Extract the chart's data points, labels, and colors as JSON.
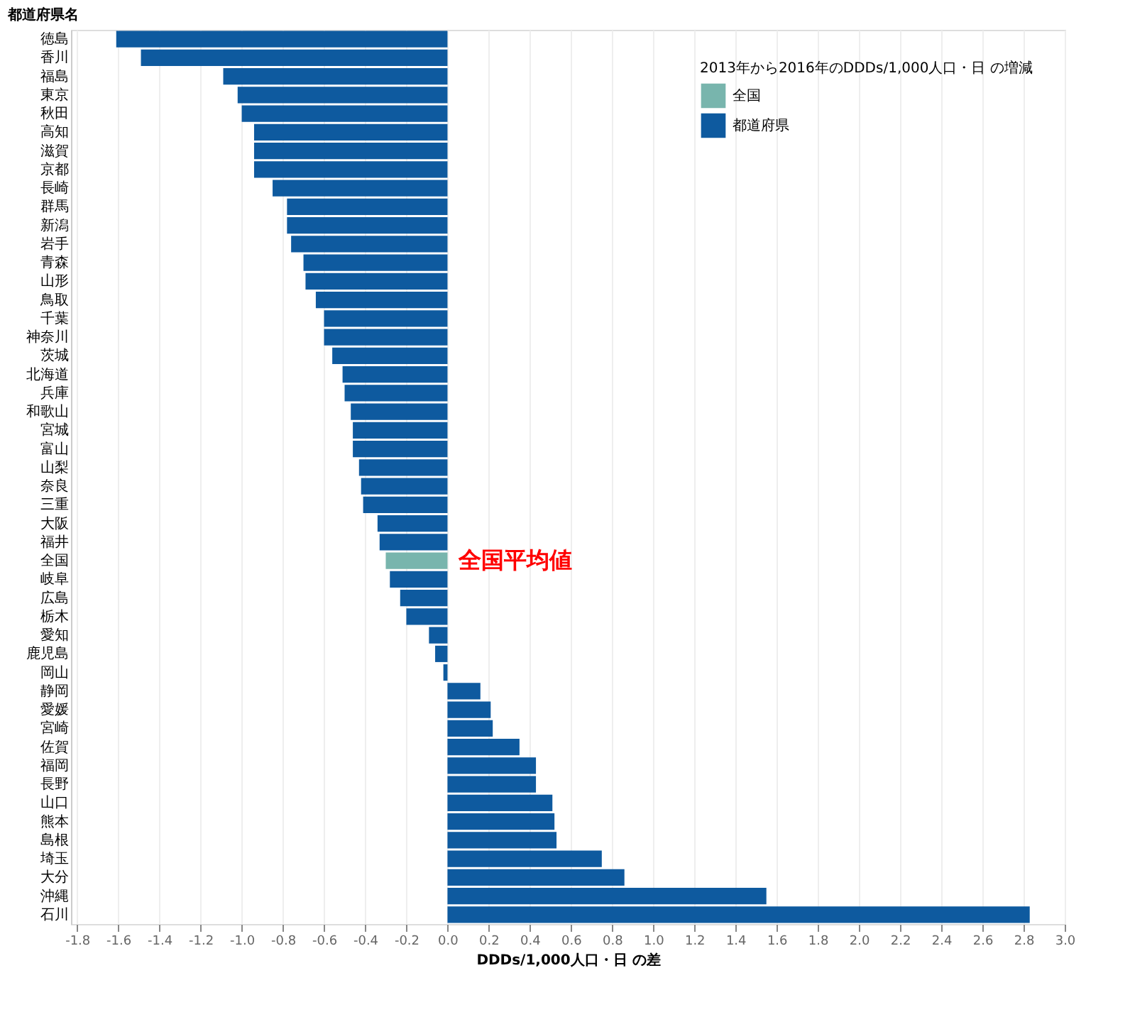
{
  "chart_data": {
    "type": "bar",
    "orientation": "horizontal",
    "categories": [
      "徳島",
      "香川",
      "福島",
      "東京",
      "秋田",
      "高知",
      "滋賀",
      "京都",
      "長崎",
      "群馬",
      "新潟",
      "岩手",
      "青森",
      "山形",
      "鳥取",
      "千葉",
      "神奈川",
      "茨城",
      "北海道",
      "兵庫",
      "和歌山",
      "宮城",
      "富山",
      "山梨",
      "奈良",
      "三重",
      "大阪",
      "福井",
      "全国",
      "岐阜",
      "広島",
      "栃木",
      "愛知",
      "鹿児島",
      "岡山",
      "静岡",
      "愛媛",
      "宮崎",
      "佐賀",
      "福岡",
      "長野",
      "山口",
      "熊本",
      "島根",
      "埼玉",
      "大分",
      "沖縄",
      "石川"
    ],
    "series": [
      {
        "name": "全国",
        "color": "#78b5ad",
        "values": [
          null,
          null,
          null,
          null,
          null,
          null,
          null,
          null,
          null,
          null,
          null,
          null,
          null,
          null,
          null,
          null,
          null,
          null,
          null,
          null,
          null,
          null,
          null,
          null,
          null,
          null,
          null,
          null,
          -0.3,
          null,
          null,
          null,
          null,
          null,
          null,
          null,
          null,
          null,
          null,
          null,
          null,
          null,
          null,
          null,
          null,
          null,
          null,
          null
        ]
      },
      {
        "name": "都道府県",
        "color": "#0e5a9f",
        "values": [
          -1.61,
          -1.49,
          -1.09,
          -1.02,
          -1.0,
          -0.94,
          -0.94,
          -0.94,
          -0.85,
          -0.78,
          -0.78,
          -0.76,
          -0.7,
          -0.69,
          -0.64,
          -0.6,
          -0.6,
          -0.56,
          -0.51,
          -0.5,
          -0.47,
          -0.46,
          -0.46,
          -0.43,
          -0.42,
          -0.41,
          -0.34,
          -0.33,
          null,
          -0.28,
          -0.23,
          -0.2,
          -0.09,
          -0.06,
          -0.02,
          0.16,
          0.21,
          0.22,
          0.35,
          0.43,
          0.43,
          0.51,
          0.52,
          0.53,
          0.75,
          0.86,
          1.55,
          2.83
        ]
      }
    ],
    "xlabel": "DDDs/1,000人口・日 の差",
    "ylabel": "都道府県名",
    "legend_title": "2013年から2016年のDDDs/1,000人口・日 の増減",
    "legend": "top right",
    "grid": "x",
    "xlim": [
      -1.83,
      3.0
    ],
    "xticks": [
      {
        "value": -1.8,
        "label": "-1.8"
      },
      {
        "value": -1.6,
        "label": "-1.6"
      },
      {
        "value": -1.4,
        "label": "-1.4"
      },
      {
        "value": -1.2,
        "label": "-1.2"
      },
      {
        "value": -1.0,
        "label": "-1.0"
      },
      {
        "value": -0.8,
        "label": "-0.8"
      },
      {
        "value": -0.6,
        "label": "-0.6"
      },
      {
        "value": -0.4,
        "label": "-0.4"
      },
      {
        "value": -0.2,
        "label": "-0.2"
      },
      {
        "value": 0,
        "label": "0.0"
      },
      {
        "value": 0.2,
        "label": "0.2"
      },
      {
        "value": 0.4,
        "label": "0.4"
      },
      {
        "value": 0.6,
        "label": "0.6"
      },
      {
        "value": 0.8,
        "label": "0.8"
      },
      {
        "value": 1.0,
        "label": "1.0"
      },
      {
        "value": 1.2,
        "label": "1.2"
      },
      {
        "value": 1.4,
        "label": "1.4"
      },
      {
        "value": 1.6,
        "label": "1.6"
      },
      {
        "value": 1.8,
        "label": "1.8"
      },
      {
        "value": 2.0,
        "label": "2.0"
      },
      {
        "value": 2.2,
        "label": "2.2"
      },
      {
        "value": 2.4,
        "label": "2.4"
      },
      {
        "value": 2.6,
        "label": "2.6"
      },
      {
        "value": 2.8,
        "label": "2.8"
      },
      {
        "value": 3.0,
        "label": "3.0"
      }
    ],
    "annotations": [
      {
        "text": "全国平均値",
        "x": 0,
        "y": "全国"
      }
    ]
  }
}
